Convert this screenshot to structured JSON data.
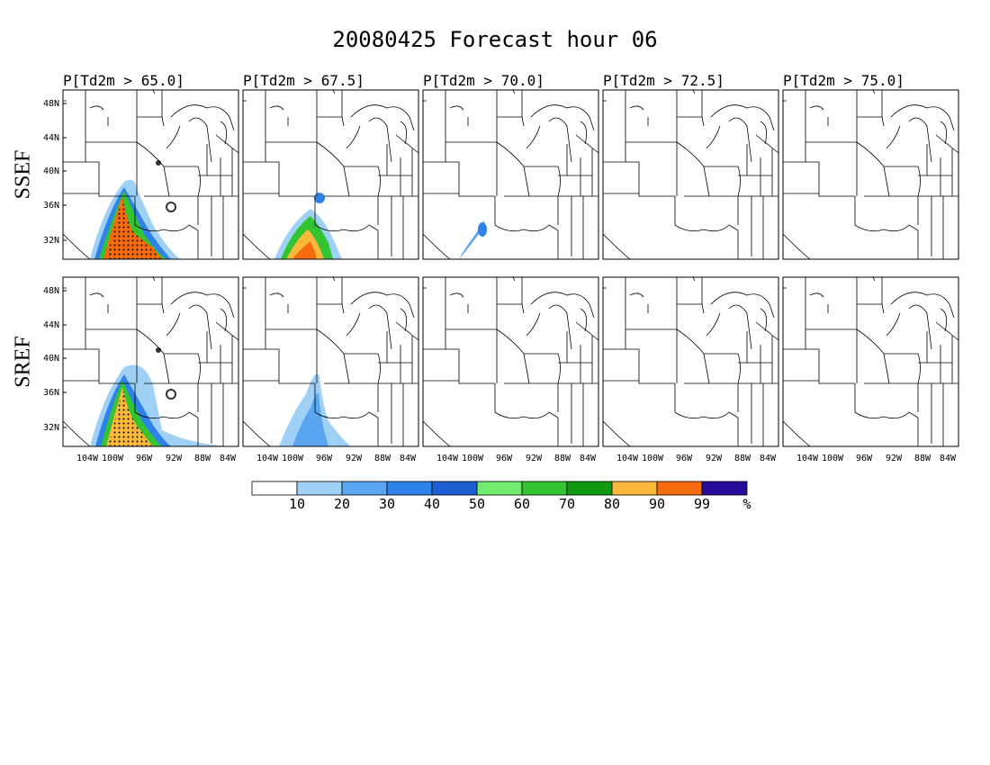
{
  "title": "20080425 Forecast hour 06",
  "columns": [
    "P[Td2m > 65.0]",
    "P[Td2m > 67.5]",
    "P[Td2m > 70.0]",
    "P[Td2m > 72.5]",
    "P[Td2m > 75.0]"
  ],
  "rows": [
    "SSEF",
    "SREF"
  ],
  "lat_labels": [
    "48N",
    "44N",
    "40N",
    "36N",
    "32N"
  ],
  "lon_labels": [
    "104W",
    "100W",
    "96W",
    "92W",
    "88W",
    "84W"
  ],
  "colorbar": {
    "colors": [
      "#ffffff",
      "#9fd0f5",
      "#5aa6f0",
      "#2f82ea",
      "#1c5fd2",
      "#72ec6e",
      "#33c433",
      "#119a11",
      "#fbb83a",
      "#f76b0f",
      "#2a0c9c"
    ],
    "labels": [
      10,
      20,
      30,
      40,
      50,
      60,
      70,
      80,
      90,
      99
    ],
    "unit": "%"
  }
}
